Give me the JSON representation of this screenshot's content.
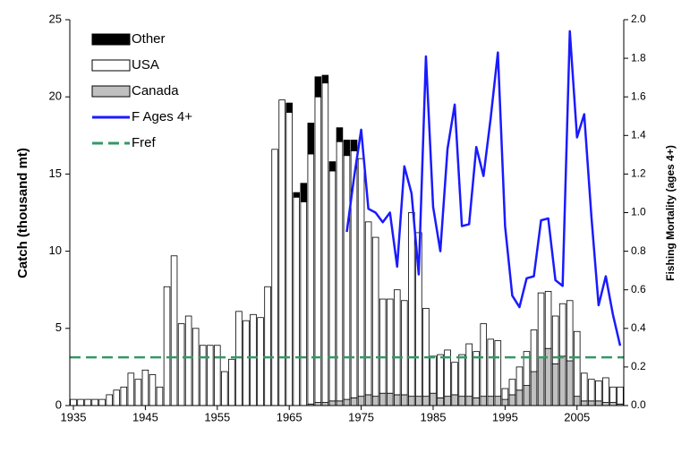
{
  "chart_data": {
    "type": "bar",
    "stacked": true,
    "y_label": "Catch (thousand mt)",
    "y2_label": "Fishing Mortality (ages 4+)",
    "x": [
      1935,
      1936,
      1937,
      1938,
      1939,
      1940,
      1941,
      1942,
      1943,
      1944,
      1945,
      1946,
      1947,
      1948,
      1949,
      1950,
      1951,
      1952,
      1953,
      1954,
      1955,
      1956,
      1957,
      1958,
      1959,
      1960,
      1961,
      1962,
      1963,
      1964,
      1965,
      1966,
      1967,
      1968,
      1969,
      1970,
      1971,
      1972,
      1973,
      1974,
      1975,
      1976,
      1977,
      1978,
      1979,
      1980,
      1981,
      1982,
      1983,
      1984,
      1985,
      1986,
      1987,
      1988,
      1989,
      1990,
      1991,
      1992,
      1993,
      1994,
      1995,
      1996,
      1997,
      1998,
      1999,
      2000,
      2001,
      2002,
      2003,
      2004,
      2005,
      2006,
      2007,
      2008,
      2009,
      2010,
      2011
    ],
    "xlim": [
      1934.5,
      2011.5
    ],
    "xticks": [
      1935,
      1945,
      1955,
      1965,
      1975,
      1985,
      1995,
      2005
    ],
    "ylim": [
      0,
      25
    ],
    "yticks": [
      0,
      5,
      10,
      15,
      20,
      25
    ],
    "y2lim": [
      0,
      2
    ],
    "y2ticks": [
      {
        "value": 0,
        "label": "0.0"
      },
      0.2,
      0.4,
      0.6,
      0.8,
      {
        "value": 1,
        "label": "1.0"
      },
      1.2,
      1.4,
      1.6,
      1.8,
      {
        "value": 2,
        "label": "2.0"
      }
    ],
    "legend": "top-left",
    "series": [
      {
        "name": "Other",
        "color": "#000000",
        "values": [
          0,
          0,
          0,
          0,
          0,
          0,
          0,
          0,
          0,
          0,
          0,
          0,
          0,
          0,
          0,
          0,
          0,
          0,
          0,
          0,
          0,
          0,
          0,
          0,
          0,
          0,
          0,
          0,
          0,
          0,
          0.6,
          0.3,
          1.2,
          2.0,
          1.3,
          0.5,
          0.6,
          0.9,
          1.0,
          0.7,
          0,
          0,
          0,
          0,
          0,
          0,
          0,
          0,
          0,
          0,
          0,
          0,
          0,
          0,
          0,
          0,
          0,
          0,
          0,
          0,
          0,
          0,
          0,
          0,
          0,
          0,
          0,
          0,
          0,
          0,
          0,
          0,
          0,
          0,
          0,
          0,
          0
        ]
      },
      {
        "name": "USA",
        "color": "#ffffff",
        "values": [
          0.4,
          0.4,
          0.4,
          0.4,
          0.4,
          0.7,
          1.0,
          1.2,
          2.1,
          1.7,
          2.3,
          2.0,
          1.2,
          7.7,
          9.7,
          5.3,
          5.8,
          5.0,
          3.9,
          3.9,
          3.9,
          2.2,
          3.0,
          6.1,
          5.5,
          5.9,
          5.7,
          7.7,
          16.6,
          19.8,
          19.0,
          13.5,
          13.2,
          16.2,
          19.8,
          20.7,
          14.9,
          16.8,
          15.8,
          16.0,
          15.4,
          11.2,
          10.3,
          6.1,
          6.1,
          6.8,
          6.1,
          11.9,
          10.6,
          5.7,
          2.4,
          2.8,
          3.0,
          2.1,
          2.7,
          3.4,
          3.0,
          4.7,
          3.7,
          3.6,
          0.7,
          1.0,
          1.5,
          2.2,
          2.7,
          4.2,
          3.7,
          3.1,
          3.4,
          3.9,
          4.2,
          1.8,
          1.4,
          1.3,
          1.6,
          1.0,
          1.1
        ]
      },
      {
        "name": "Canada",
        "color": "#c0c0c0",
        "values": [
          0,
          0,
          0,
          0,
          0,
          0,
          0,
          0,
          0,
          0,
          0,
          0,
          0,
          0,
          0,
          0,
          0,
          0,
          0,
          0,
          0,
          0,
          0,
          0,
          0,
          0,
          0,
          0,
          0,
          0,
          0,
          0,
          0,
          0.1,
          0.2,
          0.2,
          0.3,
          0.3,
          0.4,
          0.5,
          0.6,
          0.7,
          0.6,
          0.8,
          0.8,
          0.7,
          0.7,
          0.6,
          0.6,
          0.6,
          0.8,
          0.5,
          0.6,
          0.7,
          0.6,
          0.6,
          0.5,
          0.6,
          0.6,
          0.6,
          0.4,
          0.7,
          1.0,
          1.3,
          2.2,
          3.1,
          3.7,
          2.7,
          3.2,
          2.9,
          0.6,
          0.3,
          0.3,
          0.3,
          0.2,
          0.2,
          0.1
        ]
      },
      {
        "name": "F Ages 4+",
        "type": "line",
        "axis": "y2",
        "color": "#1a1aff",
        "x": [
          1973,
          1974,
          1975,
          1976,
          1977,
          1978,
          1979,
          1980,
          1981,
          1982,
          1983,
          1984,
          1985,
          1986,
          1987,
          1988,
          1989,
          1990,
          1991,
          1992,
          1993,
          1994,
          1995,
          1996,
          1997,
          1998,
          1999,
          2000,
          2001,
          2002,
          2003,
          2004,
          2005,
          2006,
          2007,
          2008,
          2009,
          2010,
          2011
        ],
        "values": [
          0.9,
          1.18,
          1.43,
          1.02,
          1.0,
          0.95,
          1.0,
          0.72,
          1.24,
          1.1,
          0.68,
          1.81,
          1.03,
          0.8,
          1.33,
          1.56,
          0.93,
          0.94,
          1.34,
          1.19,
          1.49,
          1.83,
          0.93,
          0.57,
          0.51,
          0.66,
          0.67,
          0.96,
          0.97,
          0.65,
          0.62,
          1.94,
          1.39,
          1.51,
          0.98,
          0.52,
          0.67,
          0.47,
          0.31
        ]
      }
    ],
    "reference_lines": [
      {
        "name": "Fref",
        "value": 0.25,
        "axis": "y2",
        "color": "#339966",
        "style": "dashed"
      }
    ]
  }
}
